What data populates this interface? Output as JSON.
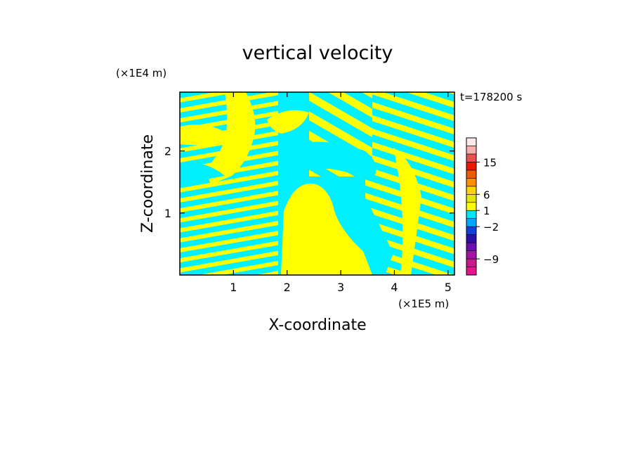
{
  "chart_data": {
    "type": "heatmap",
    "title": "vertical velocity",
    "xlabel": "X-coordinate",
    "ylabel": "Z-coordinate",
    "x_unit": "(×1E5 m)",
    "y_unit": "(×1E4 m)",
    "time_label": "t=178200 s",
    "xlim": [
      0,
      5.12
    ],
    "ylim": [
      0,
      2.95
    ],
    "x_ticks": [
      "1",
      "2",
      "3",
      "4",
      "5"
    ],
    "y_ticks": [
      "1",
      "2"
    ],
    "grid": false,
    "legend": "colorbar-right",
    "colorbar": {
      "tick_labels": [
        "15",
        "6",
        "1",
        "−2",
        "−9"
      ],
      "bands": [
        {
          "color": "#e5158f"
        },
        {
          "color": "#c8198e"
        },
        {
          "color": "#a213a6"
        },
        {
          "color": "#6a10b0"
        },
        {
          "color": "#2c0fa6"
        },
        {
          "color": "#1240d8"
        },
        {
          "color": "#00a6ff"
        },
        {
          "color": "#00e5ff"
        },
        {
          "color": "#ffff00"
        },
        {
          "color": "#e6e600"
        },
        {
          "color": "#ffd400"
        },
        {
          "color": "#ff8f00"
        },
        {
          "color": "#f05a00"
        },
        {
          "color": "#e81900"
        },
        {
          "color": "#ee5050"
        },
        {
          "color": "#f7b0b0"
        },
        {
          "color": "#fde8e8"
        }
      ]
    },
    "field": {
      "positive_color": "#ffff00",
      "negative_color": "#00f0ff",
      "description_values": "alternating up/down bands of roughly +1 and -1 m/s"
    }
  }
}
